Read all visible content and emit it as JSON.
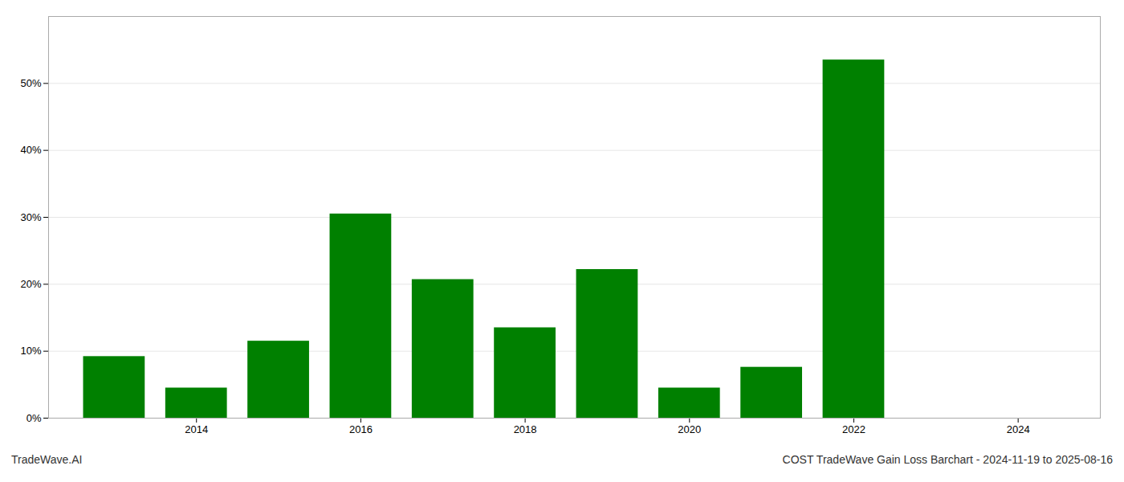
{
  "chart_data": {
    "type": "bar",
    "x": [
      2013,
      2014,
      2015,
      2016,
      2017,
      2018,
      2019,
      2020,
      2021,
      2022
    ],
    "values": [
      0.092,
      0.045,
      0.115,
      0.305,
      0.207,
      0.135,
      0.222,
      0.045,
      0.076,
      0.535
    ],
    "color": "#008000",
    "xlim": [
      2012.2,
      2025.0
    ],
    "xticks": [
      2014,
      2016,
      2018,
      2020,
      2022,
      2024
    ],
    "ylim": [
      0,
      0.6
    ],
    "yticks": [
      {
        "value": 0.0,
        "label": "0%"
      },
      {
        "value": 0.1,
        "label": "10%"
      },
      {
        "value": 0.2,
        "label": "20%"
      },
      {
        "value": 0.3,
        "label": "30%"
      },
      {
        "value": 0.4,
        "label": "40%"
      },
      {
        "value": 0.5,
        "label": "50%"
      }
    ],
    "grid": true,
    "annotations": [
      "TradeWave.AI",
      "COST TradeWave Gain Loss Barchart - 2024-11-19 to 2025-08-16"
    ]
  }
}
